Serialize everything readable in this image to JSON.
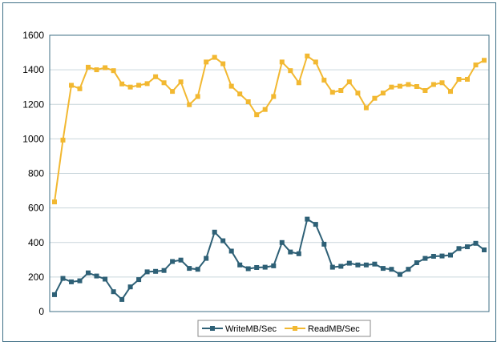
{
  "chart_data": {
    "type": "line",
    "title": "",
    "xlabel": "",
    "ylabel": "",
    "ylim": [
      0,
      1600
    ],
    "yticks": [
      0,
      200,
      400,
      600,
      800,
      1000,
      1200,
      1400,
      1600
    ],
    "grid": "horizontal",
    "legend": "bottom",
    "series": [
      {
        "name": "WriteMB/Sec",
        "color": "#2e6076",
        "marker": "square",
        "values": [
          98,
          192,
          172,
          178,
          224,
          206,
          188,
          115,
          70,
          143,
          185,
          230,
          233,
          238,
          290,
          298,
          250,
          245,
          308,
          460,
          410,
          350,
          270,
          248,
          255,
          257,
          265,
          400,
          345,
          335,
          535,
          505,
          390,
          257,
          262,
          280,
          270,
          270,
          275,
          250,
          245,
          215,
          245,
          283,
          308,
          320,
          322,
          327,
          365,
          375,
          395,
          357
        ]
      },
      {
        "name": "ReadMB/Sec",
        "color": "#f2b831",
        "marker": "square",
        "values": [
          635,
          993,
          1310,
          1290,
          1415,
          1400,
          1412,
          1395,
          1318,
          1300,
          1310,
          1320,
          1360,
          1325,
          1275,
          1330,
          1198,
          1245,
          1445,
          1472,
          1435,
          1305,
          1260,
          1215,
          1140,
          1170,
          1245,
          1445,
          1395,
          1325,
          1480,
          1445,
          1340,
          1270,
          1280,
          1330,
          1265,
          1180,
          1235,
          1265,
          1300,
          1305,
          1315,
          1303,
          1280,
          1315,
          1325,
          1275,
          1345,
          1345,
          1428,
          1455
        ]
      }
    ]
  }
}
